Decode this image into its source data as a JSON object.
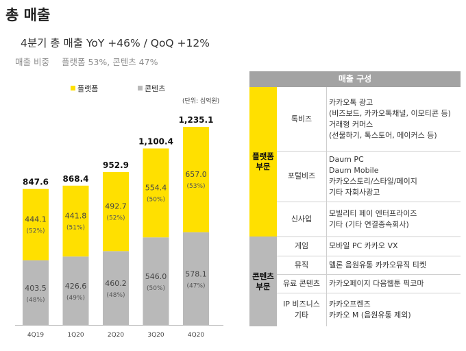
{
  "title": "총 매출",
  "subtitle": "4분기 총 매출  YoY +46% / QoQ +12%",
  "ratio_label": "매출 비중",
  "ratio_value": "플랫폼 53%, 콘텐츠 47%",
  "legend": {
    "platform": "플랫폼",
    "content": "콘텐츠"
  },
  "unit": "(단위: 십억원)",
  "colors": {
    "platform": "#ffe000",
    "content": "#b9b9b9"
  },
  "chart_data": {
    "type": "bar",
    "stacked": true,
    "categories": [
      "4Q19",
      "1Q20",
      "2Q20",
      "3Q20",
      "4Q20"
    ],
    "totals": [
      "847.6",
      "868.4",
      "952.9",
      "1,100.4",
      "1,235.1"
    ],
    "series": [
      {
        "name": "콘텐츠",
        "values": [
          403.5,
          426.6,
          460.2,
          546.0,
          578.1
        ],
        "labels": [
          "403.5",
          "426.6",
          "460.2",
          "546.0",
          "578.1"
        ],
        "shares": [
          "(48%)",
          "(49%)",
          "(48%)",
          "(50%)",
          "(47%)"
        ]
      },
      {
        "name": "플랫폼",
        "values": [
          444.1,
          441.8,
          492.7,
          554.4,
          657.0
        ],
        "labels": [
          "444.1",
          "441.8",
          "492.7",
          "554.4",
          "657.0"
        ],
        "shares": [
          "(52%)",
          "(51%)",
          "(52%)",
          "(50%)",
          "(53%)"
        ]
      }
    ],
    "ylim": [
      0,
      1235.1
    ]
  },
  "panel": {
    "header": "매출 구성",
    "platform_label": "플랫폼\n부문",
    "content_label": "콘텐츠\n부문",
    "rows": [
      {
        "category": "톡비즈",
        "items": [
          "카카오톡 광고",
          "(비즈보드, 카카오톡채널, 이모티콘 등)",
          "거래형 커머스",
          "(선물하기, 톡스토어, 메이커스 등)"
        ]
      },
      {
        "category": "포털비즈",
        "items": [
          "Daum PC",
          "Daum Mobile",
          "카카오스토리/스타일/페이지",
          "기타 자회사광고"
        ]
      },
      {
        "category": "신사업",
        "items": [
          "모빌리티    페이    엔터프라이즈",
          "기타 (기타 연결종속회사)"
        ]
      },
      {
        "category": "게임",
        "items": [
          "모바일    PC    카카오 VX"
        ]
      },
      {
        "category": "뮤직",
        "items": [
          "멜론   음원유통    카카오뮤직   티켓"
        ]
      },
      {
        "category": "유료 콘텐츠",
        "items": [
          "카카오페이지   다음웹툰    픽코마"
        ]
      },
      {
        "category": "IP 비즈니스\n기타",
        "items": [
          "카카오프렌즈",
          "카카오 M (음원유통 제외)"
        ]
      }
    ]
  }
}
